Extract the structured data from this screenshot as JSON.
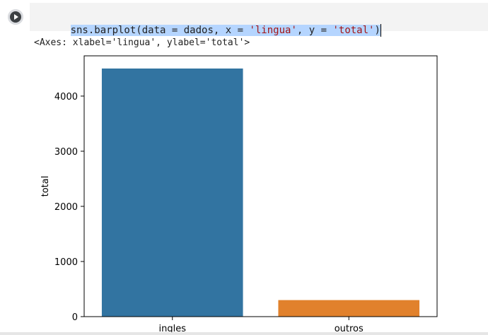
{
  "cell": {
    "code": [
      {
        "text": "sns.barplot(data = dados, x = ",
        "kind": "plain"
      },
      {
        "text": "'lingua'",
        "kind": "str"
      },
      {
        "text": ", y = ",
        "kind": "plain"
      },
      {
        "text": "'total'",
        "kind": "str"
      },
      {
        "text": ")",
        "kind": "plain"
      }
    ],
    "output": "<Axes: xlabel='lingua', ylabel='total'>"
  },
  "colors": {
    "bar_ingles": "#3274a1",
    "bar_outros": "#e1812c",
    "selection": "#b5d5ff",
    "string": "#a31515"
  },
  "icons": {
    "run": "play-icon"
  },
  "chart_data": {
    "type": "bar",
    "categories": [
      "ingles",
      "outros"
    ],
    "values": [
      4500,
      300
    ],
    "xlabel": "",
    "ylabel": "total",
    "ylim": [
      0,
      4730
    ],
    "yticks": [
      0,
      1000,
      2000,
      3000,
      4000
    ],
    "ytick_labels": [
      "0",
      "1000",
      "2000",
      "3000",
      "4000"
    ],
    "grid": false
  }
}
